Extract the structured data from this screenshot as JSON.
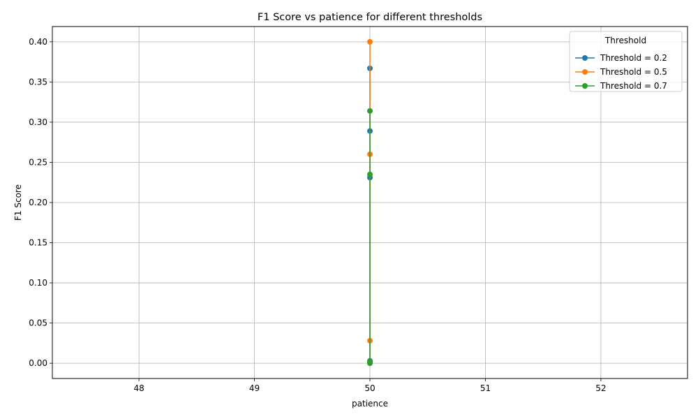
{
  "chart_data": {
    "type": "line",
    "title": "F1 Score vs patience for different thresholds",
    "xlabel": "patience",
    "ylabel": "F1 Score",
    "xlim": [
      47.25,
      52.75
    ],
    "ylim": [
      -0.019,
      0.419
    ],
    "xticks": [
      48,
      49,
      50,
      51,
      52
    ],
    "xtick_labels": [
      "48",
      "49",
      "50",
      "51",
      "52"
    ],
    "yticks": [
      0.0,
      0.05,
      0.1,
      0.15,
      0.2,
      0.25,
      0.3,
      0.35,
      0.4
    ],
    "ytick_labels": [
      "0.00",
      "0.05",
      "0.10",
      "0.15",
      "0.20",
      "0.25",
      "0.30",
      "0.35",
      "0.40"
    ],
    "grid": true,
    "legend": {
      "title": "Threshold",
      "placement": "top-right"
    },
    "series": [
      {
        "name": "Threshold = 0.2",
        "color": "#1f77b4",
        "x": [
          50,
          50,
          50,
          50,
          50
        ],
        "y": [
          0.367,
          0.289,
          0.231,
          0.003,
          0.001
        ]
      },
      {
        "name": "Threshold = 0.5",
        "color": "#ff7f0e",
        "x": [
          50,
          50,
          50,
          50
        ],
        "y": [
          0.4,
          0.26,
          0.028,
          0.0
        ]
      },
      {
        "name": "Threshold = 0.7",
        "color": "#2ca02c",
        "x": [
          50,
          50,
          50,
          50
        ],
        "y": [
          0.314,
          0.235,
          0.002,
          0.0
        ]
      }
    ]
  }
}
